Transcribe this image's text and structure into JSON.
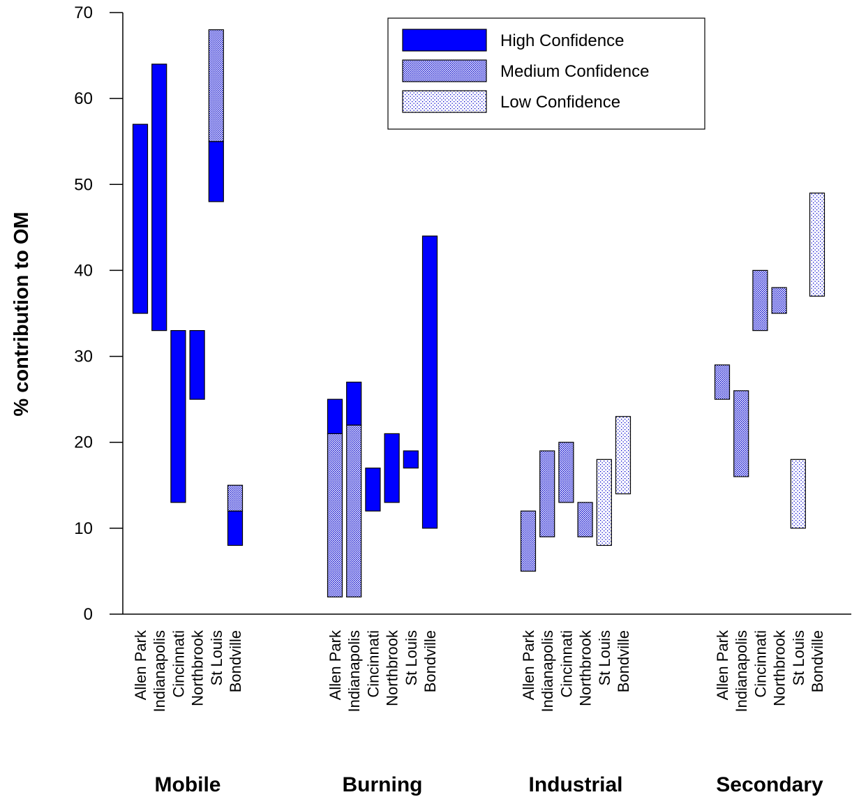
{
  "chart_data": {
    "type": "bar",
    "subtype": "floating-range",
    "ylabel": "% contribution to OM",
    "ylim": [
      0,
      70
    ],
    "yticks": [
      0,
      10,
      20,
      30,
      40,
      50,
      60,
      70
    ],
    "legend_position": "top-right",
    "confidence_levels": [
      {
        "key": "high",
        "label": "High Confidence"
      },
      {
        "key": "medium",
        "label": "Medium Confidence"
      },
      {
        "key": "low",
        "label": "Low Confidence"
      }
    ],
    "colors": {
      "high": "#0000ff",
      "pattern": "#0000cc",
      "pattern_bg": "#ffffff"
    },
    "groups": [
      {
        "name": "Mobile",
        "sites": [
          {
            "site": "Allen Park",
            "segments": [
              {
                "from": 35,
                "to": 57,
                "level": "high"
              }
            ]
          },
          {
            "site": "Indianapolis",
            "segments": [
              {
                "from": 33,
                "to": 64,
                "level": "high"
              }
            ]
          },
          {
            "site": "Cincinnati",
            "segments": [
              {
                "from": 13,
                "to": 33,
                "level": "high"
              }
            ]
          },
          {
            "site": "Northbrook",
            "segments": [
              {
                "from": 25,
                "to": 33,
                "level": "high"
              }
            ]
          },
          {
            "site": "St Louis",
            "segments": [
              {
                "from": 48,
                "to": 55,
                "level": "high"
              },
              {
                "from": 55,
                "to": 68,
                "level": "medium"
              }
            ]
          },
          {
            "site": "Bondville",
            "segments": [
              {
                "from": 8,
                "to": 12,
                "level": "high"
              },
              {
                "from": 12,
                "to": 15,
                "level": "medium"
              }
            ]
          }
        ]
      },
      {
        "name": "Burning",
        "sites": [
          {
            "site": "Allen Park",
            "segments": [
              {
                "from": 2,
                "to": 21,
                "level": "medium"
              },
              {
                "from": 21,
                "to": 25,
                "level": "high"
              }
            ]
          },
          {
            "site": "Indianapolis",
            "segments": [
              {
                "from": 2,
                "to": 22,
                "level": "medium"
              },
              {
                "from": 22,
                "to": 27,
                "level": "high"
              }
            ]
          },
          {
            "site": "Cincinnati",
            "segments": [
              {
                "from": 12,
                "to": 17,
                "level": "high"
              }
            ]
          },
          {
            "site": "Northbrook",
            "segments": [
              {
                "from": 13,
                "to": 21,
                "level": "high"
              }
            ]
          },
          {
            "site": "St Louis",
            "segments": [
              {
                "from": 17,
                "to": 19,
                "level": "high"
              }
            ]
          },
          {
            "site": "Bondville",
            "segments": [
              {
                "from": 10,
                "to": 44,
                "level": "high"
              }
            ]
          }
        ]
      },
      {
        "name": "Industrial",
        "sites": [
          {
            "site": "Allen Park",
            "segments": [
              {
                "from": 5,
                "to": 12,
                "level": "medium"
              }
            ]
          },
          {
            "site": "Indianapolis",
            "segments": [
              {
                "from": 9,
                "to": 19,
                "level": "medium"
              }
            ]
          },
          {
            "site": "Cincinnati",
            "segments": [
              {
                "from": 13,
                "to": 20,
                "level": "medium"
              }
            ]
          },
          {
            "site": "Northbrook",
            "segments": [
              {
                "from": 9,
                "to": 13,
                "level": "medium"
              }
            ]
          },
          {
            "site": "St Louis",
            "segments": [
              {
                "from": 8,
                "to": 18,
                "level": "low"
              }
            ]
          },
          {
            "site": "Bondville",
            "segments": [
              {
                "from": 14,
                "to": 23,
                "level": "low"
              }
            ]
          }
        ]
      },
      {
        "name": "Secondary",
        "sites": [
          {
            "site": "Allen Park",
            "segments": [
              {
                "from": 25,
                "to": 29,
                "level": "medium"
              }
            ]
          },
          {
            "site": "Indianapolis",
            "segments": [
              {
                "from": 16,
                "to": 26,
                "level": "medium"
              }
            ]
          },
          {
            "site": "Cincinnati",
            "segments": [
              {
                "from": 33,
                "to": 40,
                "level": "medium"
              }
            ]
          },
          {
            "site": "Northbrook",
            "segments": [
              {
                "from": 35,
                "to": 38,
                "level": "medium"
              }
            ]
          },
          {
            "site": "St Louis",
            "segments": [
              {
                "from": 10,
                "to": 18,
                "level": "low"
              }
            ]
          },
          {
            "site": "Bondville",
            "segments": [
              {
                "from": 37,
                "to": 49,
                "level": "low"
              }
            ]
          }
        ]
      }
    ]
  }
}
